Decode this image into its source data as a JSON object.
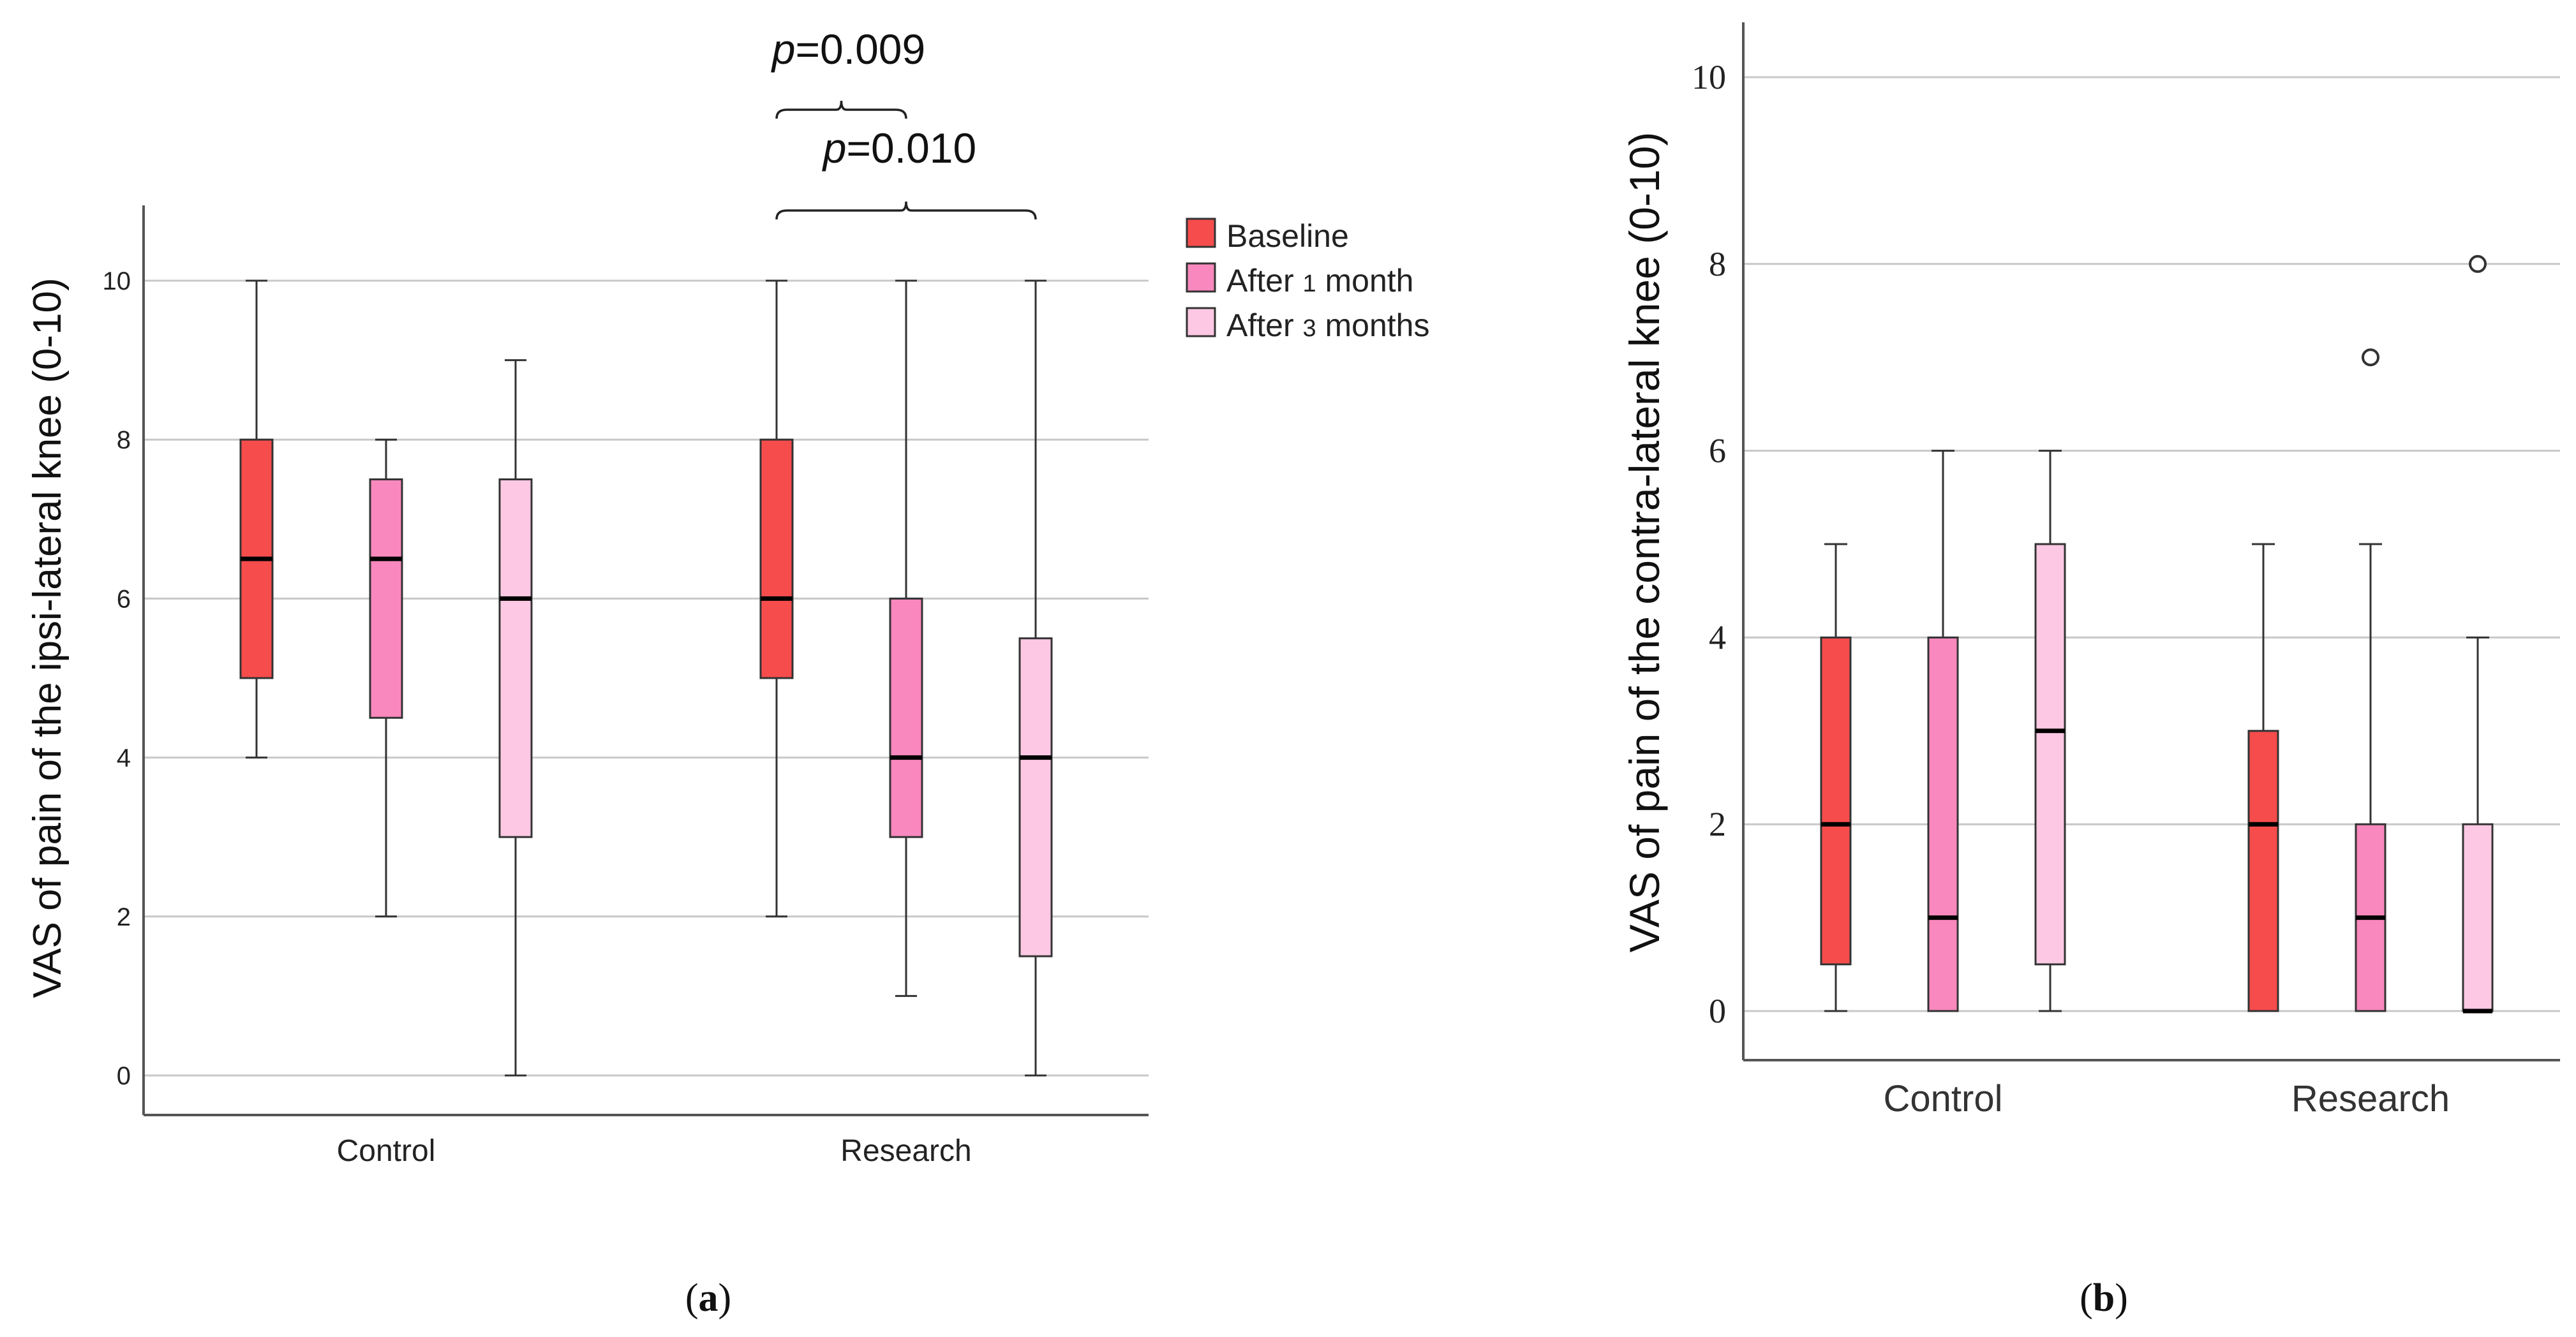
{
  "colors": {
    "baseline": "#f64c4c",
    "after_1_month": "#f888bd",
    "after_3_months": "#fdc8e3"
  },
  "chart_data": [
    {
      "type": "box",
      "panel_label_open": "(",
      "panel_label_letter": "a",
      "panel_label_close": ")",
      "ylabel": "VAS of pain of the ipsi-lateral knee (0-10)",
      "ylim": [
        0,
        10.5
      ],
      "yticks": [
        "0",
        "2",
        "4",
        "6",
        "8",
        "10"
      ],
      "ytick_values": [
        0,
        2,
        4,
        6,
        8,
        10
      ],
      "grid": true,
      "legend_position": "right",
      "categories": [
        "Control",
        "Research"
      ],
      "series": [
        {
          "name": "Baseline",
          "legend_prefix": "",
          "legend_num": "",
          "legend_suffix": "Baseline",
          "color_key": "baseline",
          "boxes": [
            {
              "min": 4,
              "q1": 5,
              "median": 6.5,
              "q3": 8,
              "max": 10,
              "outliers": []
            },
            {
              "min": 2,
              "q1": 5,
              "median": 6,
              "q3": 8,
              "max": 10,
              "outliers": []
            }
          ]
        },
        {
          "name": "After 1 month",
          "legend_prefix": "After ",
          "legend_num": "1",
          "legend_suffix": " month",
          "color_key": "after_1_month",
          "boxes": [
            {
              "min": 2,
              "q1": 4.5,
              "median": 6.5,
              "q3": 7.5,
              "max": 8,
              "outliers": []
            },
            {
              "min": 1,
              "q1": 3,
              "median": 4,
              "q3": 6,
              "max": 10,
              "outliers": []
            }
          ]
        },
        {
          "name": "After 3 months",
          "legend_prefix": "After ",
          "legend_num": "3",
          "legend_suffix": " months",
          "color_key": "after_3_months",
          "boxes": [
            {
              "min": 0,
              "q1": 3,
              "median": 6,
              "q3": 7.5,
              "max": 9,
              "outliers": []
            },
            {
              "min": 0,
              "q1": 1.5,
              "median": 4,
              "q3": 5.5,
              "max": 10,
              "outliers": []
            }
          ]
        }
      ],
      "annotations": [
        {
          "p_letter": "p",
          "p_value": "=0.009",
          "category": "Research",
          "from_series": 0,
          "to_series": 1
        },
        {
          "p_letter": "p",
          "p_value": "=0.010",
          "category": "Research",
          "from_series": 0,
          "to_series": 2
        }
      ]
    },
    {
      "type": "box",
      "panel_label_open": "(",
      "panel_label_letter": "b",
      "panel_label_close": ")",
      "ylabel": "VAS of pain of the contra-lateral knee (0-10)",
      "ylim": [
        -0.5,
        10.5
      ],
      "yticks": [
        "0",
        "2",
        "4",
        "6",
        "8",
        "10"
      ],
      "ytick_values": [
        0,
        2,
        4,
        6,
        8,
        10
      ],
      "grid": true,
      "categories": [
        "Control",
        "Research"
      ],
      "series": [
        {
          "name": "Baseline",
          "color_key": "baseline",
          "boxes": [
            {
              "min": 0,
              "q1": 0.5,
              "median": 2,
              "q3": 4,
              "max": 5,
              "outliers": []
            },
            {
              "min": 0,
              "q1": 0,
              "median": 2,
              "q3": 3,
              "max": 5,
              "outliers": []
            }
          ]
        },
        {
          "name": "After 1 month",
          "color_key": "after_1_month",
          "boxes": [
            {
              "min": 0,
              "q1": 0,
              "median": 1,
              "q3": 4,
              "max": 6,
              "outliers": []
            },
            {
              "min": 0,
              "q1": 0,
              "median": 1,
              "q3": 2,
              "max": 5,
              "outliers": [
                7
              ]
            }
          ]
        },
        {
          "name": "After 3 months",
          "color_key": "after_3_months",
          "boxes": [
            {
              "min": 0,
              "q1": 0.5,
              "median": 3,
              "q3": 5,
              "max": 6,
              "outliers": []
            },
            {
              "min": 0,
              "q1": 0,
              "median": 0,
              "q3": 2,
              "max": 4,
              "outliers": [
                8
              ]
            }
          ]
        }
      ]
    }
  ]
}
